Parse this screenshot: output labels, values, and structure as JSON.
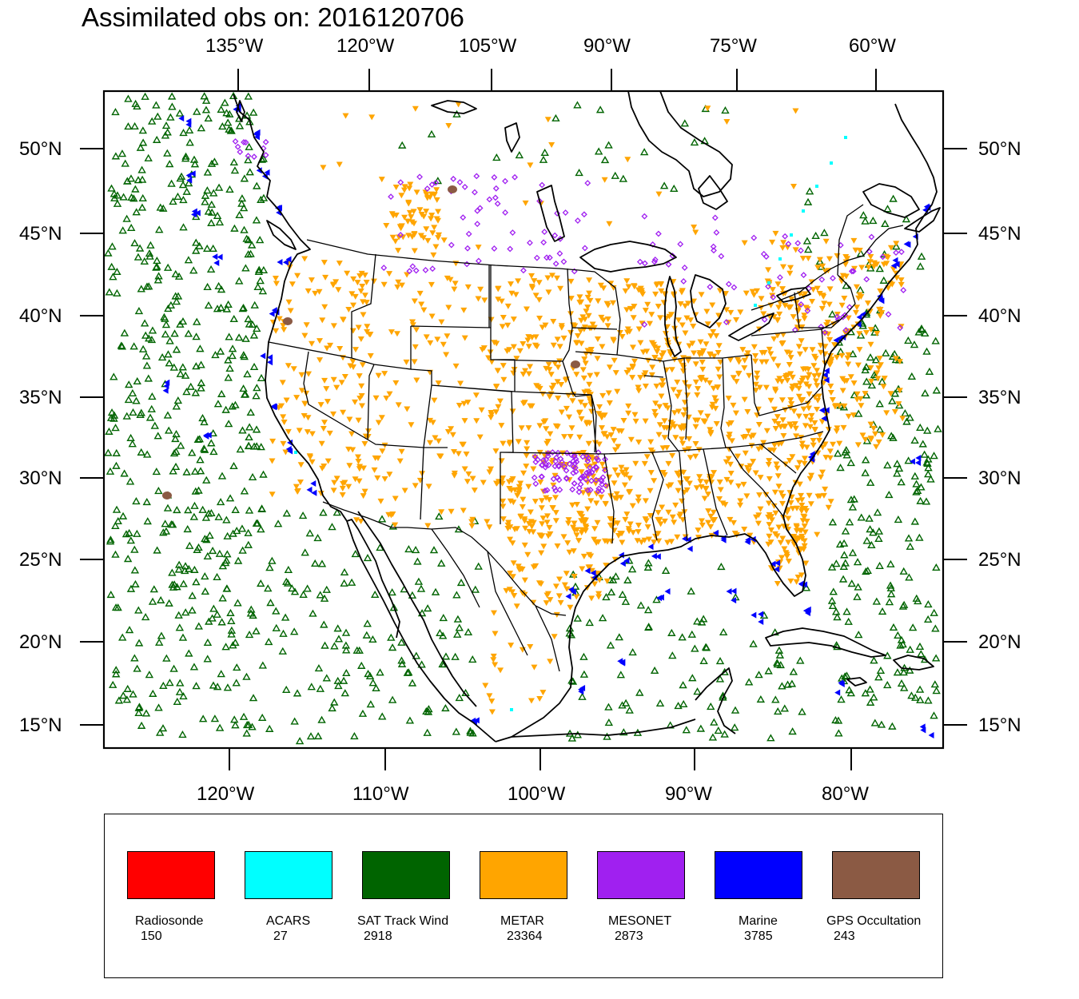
{
  "title": "Assimilated obs on: 2016120706",
  "map": {
    "top_axis_labels": [
      "135°W",
      "120°W",
      "105°W",
      "90°W",
      "75°W",
      "60°W"
    ],
    "bottom_axis_labels": [
      "120°W",
      "110°W",
      "100°W",
      "90°W",
      "80°W"
    ],
    "left_axis_labels": [
      "50°N",
      "45°N",
      "40°N",
      "35°N",
      "30°N",
      "25°N",
      "20°N",
      "15°N"
    ],
    "right_axis_labels": [
      "50°N",
      "45°N",
      "40°N",
      "35°N",
      "30°N",
      "25°N",
      "20°N",
      "15°N"
    ]
  },
  "legend": [
    {
      "name": "Radiosonde",
      "count": "150",
      "color": "#ff0000",
      "marker": "triangle-up"
    },
    {
      "name": "ACARS",
      "count": "27",
      "color": "#00ffff",
      "marker": "square"
    },
    {
      "name": "SAT Track Wind",
      "count": "2918",
      "color": "#006400",
      "marker": "triangle-up-outline"
    },
    {
      "name": "METAR",
      "count": "23364",
      "color": "#ffa500",
      "marker": "triangle-down"
    },
    {
      "name": "MESONET",
      "count": "2873",
      "color": "#a020f0",
      "marker": "diamond"
    },
    {
      "name": "Marine",
      "count": "3785",
      "color": "#0000ff",
      "marker": "triangle-left"
    },
    {
      "name": "GPS Occultation",
      "count": "243",
      "color": "#8b5a44",
      "marker": "blob"
    }
  ]
}
